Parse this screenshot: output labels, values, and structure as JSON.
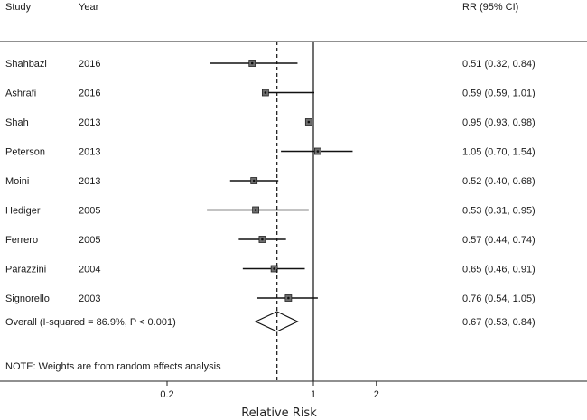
{
  "chart_data": {
    "type": "forest",
    "headers": {
      "study": "Study",
      "year": "Year",
      "rr": "RR (95% CI)"
    },
    "studies": [
      {
        "study": "Shahbazi",
        "year": "2016",
        "rr": 0.51,
        "lo": 0.32,
        "hi": 0.84,
        "label": "0.51 (0.32, 0.84)"
      },
      {
        "study": "Ashrafi",
        "year": "2016",
        "rr": 0.59,
        "lo": 0.59,
        "hi": 1.01,
        "label": "0.59 (0.59, 1.01)"
      },
      {
        "study": "Shah",
        "year": "2013",
        "rr": 0.95,
        "lo": 0.93,
        "hi": 0.98,
        "label": "0.95 (0.93, 0.98)"
      },
      {
        "study": "Peterson",
        "year": "2013",
        "rr": 1.05,
        "lo": 0.7,
        "hi": 1.54,
        "label": "1.05 (0.70, 1.54)"
      },
      {
        "study": "Moini",
        "year": "2013",
        "rr": 0.52,
        "lo": 0.4,
        "hi": 0.68,
        "label": "0.52 (0.40, 0.68)"
      },
      {
        "study": "Hediger",
        "year": "2005",
        "rr": 0.53,
        "lo": 0.31,
        "hi": 0.95,
        "label": "0.53 (0.31, 0.95)"
      },
      {
        "study": "Ferrero",
        "year": "2005",
        "rr": 0.57,
        "lo": 0.44,
        "hi": 0.74,
        "label": "0.57 (0.44, 0.74)"
      },
      {
        "study": "Parazzini",
        "year": "2004",
        "rr": 0.65,
        "lo": 0.46,
        "hi": 0.91,
        "label": "0.65 (0.46, 0.91)"
      },
      {
        "study": "Signorello",
        "year": "2003",
        "rr": 0.76,
        "lo": 0.54,
        "hi": 1.05,
        "label": "0.76 (0.54, 1.05)"
      }
    ],
    "overall": {
      "label": "Overall  (I-squared = 86.9%, P < 0.001)",
      "rr": 0.67,
      "lo": 0.53,
      "hi": 0.84,
      "rr_label": "0.67 (0.53, 0.84)"
    },
    "note": "NOTE: Weights are from random effects analysis",
    "x_ticks": [
      {
        "value": 0.2,
        "label": "0.2"
      },
      {
        "value": 1,
        "label": "1"
      },
      {
        "value": 2,
        "label": "2"
      }
    ],
    "xlabel": "Relative Risk",
    "x_scale": "log",
    "reference_line": 1,
    "pooled_line": 0.67
  }
}
